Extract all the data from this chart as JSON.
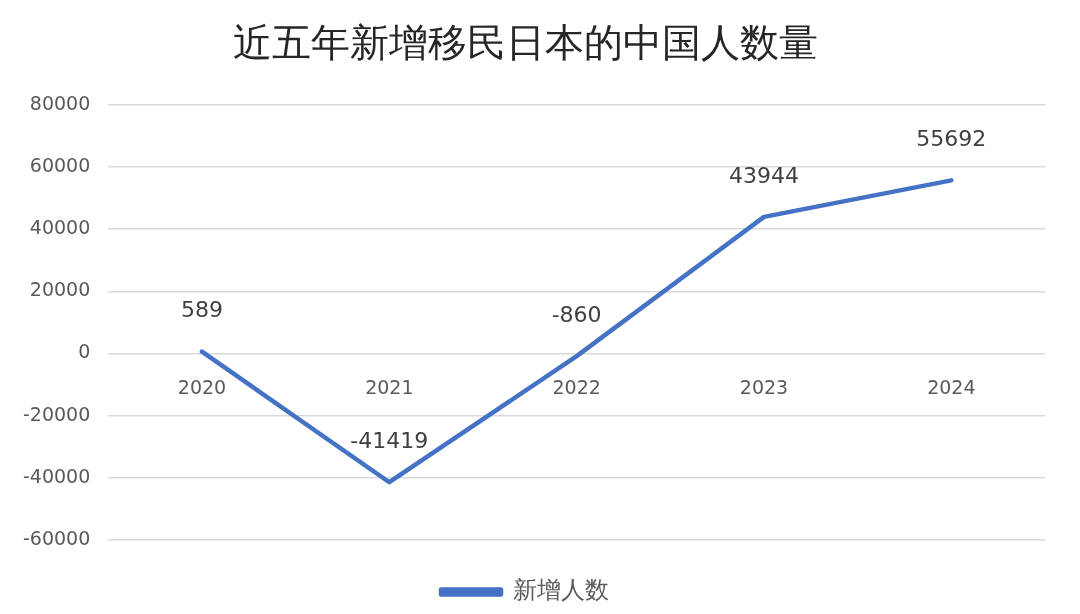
{
  "chart_data": {
    "type": "line",
    "title": "近五年新增移民日本的中国人数量",
    "categories": [
      "2020",
      "2021",
      "2022",
      "2023",
      "2024"
    ],
    "series": [
      {
        "name": "新增人数",
        "color": "#4472c4",
        "values": [
          589,
          -41419,
          -860,
          43944,
          55692
        ]
      }
    ],
    "ylim": [
      -60000,
      80000
    ],
    "yticks": [
      -60000,
      -40000,
      -20000,
      0,
      20000,
      40000,
      60000,
      80000
    ],
    "grid": "y",
    "legend": "bottom",
    "data_labels": true,
    "marker": "none",
    "line_style": "solid"
  }
}
